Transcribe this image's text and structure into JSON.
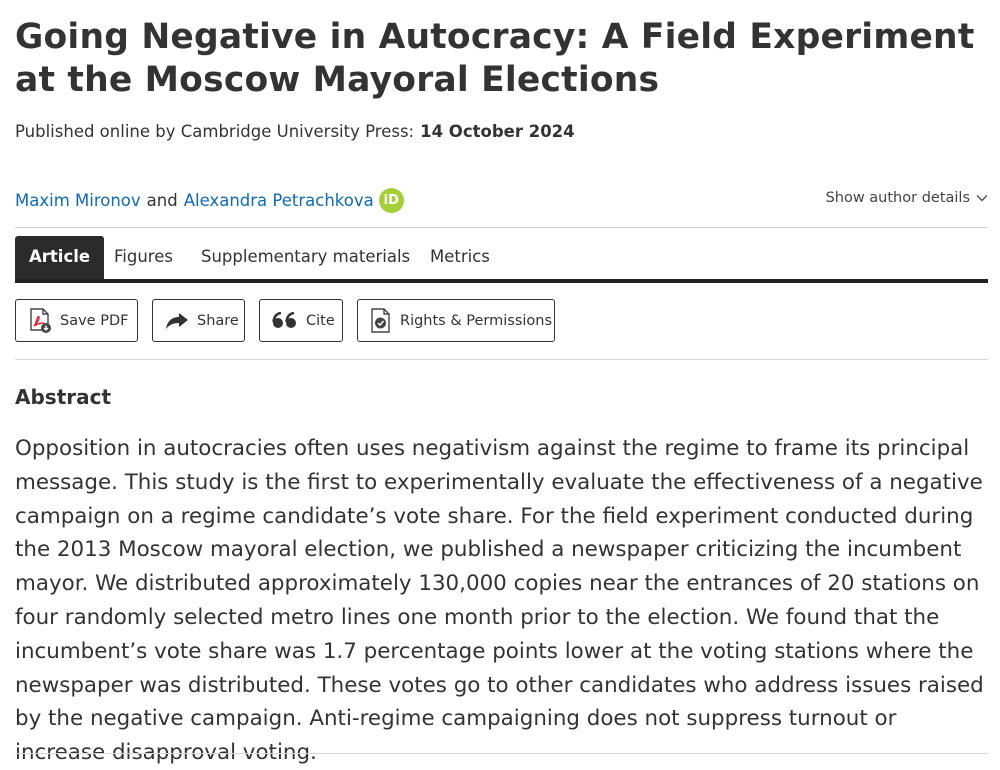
{
  "article": {
    "title": "Going Negative in Autocracy: A Field Experiment at the Moscow Mayoral Elections",
    "published_prefix": "Published online by Cambridge University Press:",
    "published_date": "14 October 2024"
  },
  "authors": {
    "first": "Maxim Mironov",
    "conjunction": "and",
    "second": "Alexandra Petrachkova",
    "orcid_label": "iD",
    "show_details": "Show author details"
  },
  "tabs": [
    {
      "label": "Article",
      "active": true
    },
    {
      "label": "Figures"
    },
    {
      "label": "Supplementary materials"
    },
    {
      "label": "Metrics"
    }
  ],
  "actions": {
    "save_pdf": "Save PDF",
    "share": "Share",
    "cite": "Cite",
    "rights": "Rights & Permissions"
  },
  "abstract": {
    "heading": "Abstract",
    "text": "Opposition in autocracies often uses negativism against the regime to frame its principal message. This study is the first to experimentally evaluate the effectiveness of a negative campaign on a regime candidate’s vote share. For the field experiment conducted during the 2013 Moscow mayoral election, we published a newspaper criticizing the incumbent mayor. We distributed approximately 130,000 copies near the entrances of 20 stations on four randomly selected metro lines one month prior to the election. We found that the incumbent’s vote share was 1.7 percentage points lower at the voting stations where the newspaper was distributed. These votes go to other candidates who address issues raised by the negative campaign. Anti-regime campaigning does not suppress turnout or increase disapproval voting."
  },
  "colors": {
    "link": "#0f6bb5",
    "orcid": "#a6ce39",
    "active_tab": "#2b2b2b",
    "pdf_red": "#d9232e"
  }
}
